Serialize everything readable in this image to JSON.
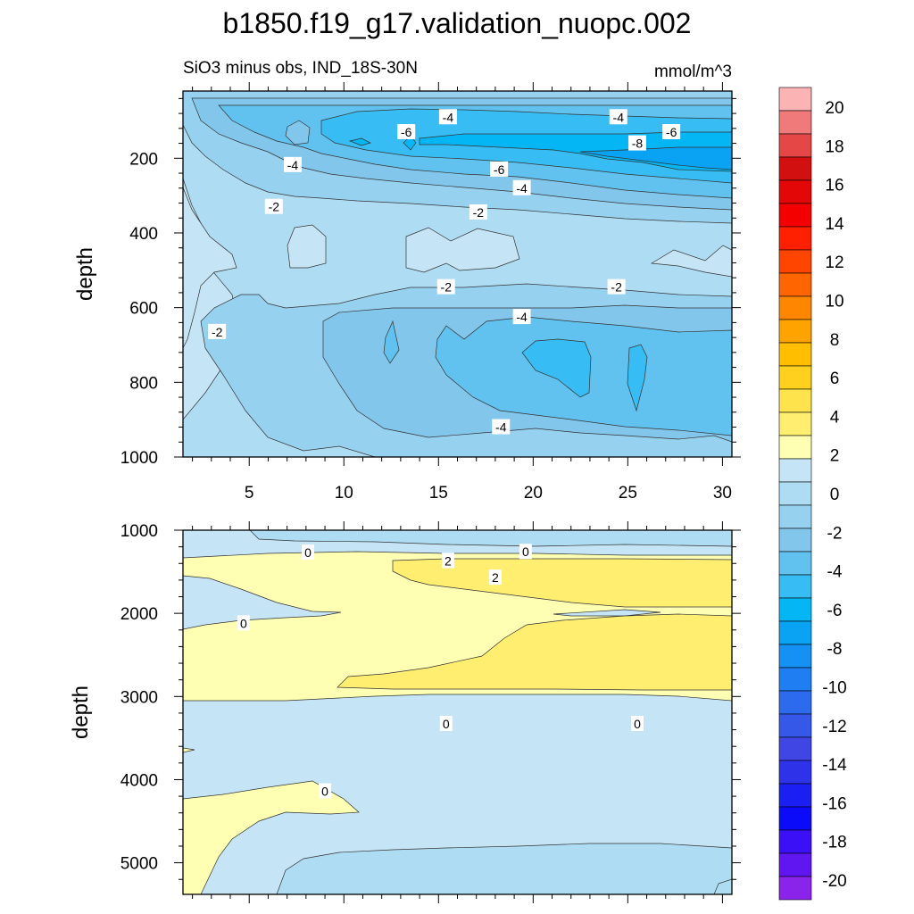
{
  "chart_data": {
    "title": "b1850.f19_g17.validation_nuopc.002",
    "panels": [
      {
        "type": "contour",
        "subtitle_left": "SiO3 minus obs, IND_18S-30N",
        "subtitle_right": "mmol/m^3",
        "ylabel": "depth",
        "ylim": [
          1000,
          20
        ],
        "xlim": [
          1.5,
          30.5
        ],
        "xticks": [
          5,
          10,
          15,
          20,
          25,
          30
        ],
        "xtick_labels": [
          "5",
          "10",
          "15",
          "20",
          "25",
          "30"
        ],
        "yticks": [
          200,
          400,
          600,
          800,
          1000
        ],
        "ytick_labels": [
          "200",
          "400",
          "600",
          "800",
          "1000"
        ],
        "contour_labels": [
          {
            "text": "-4",
            "x": 15.5,
            "y": 90
          },
          {
            "text": "-4",
            "x": 24.5,
            "y": 90
          },
          {
            "text": "-6",
            "x": 13.3,
            "y": 130
          },
          {
            "text": "-6",
            "x": 27.3,
            "y": 130
          },
          {
            "text": "-8",
            "x": 25.5,
            "y": 160
          },
          {
            "text": "-4",
            "x": 7.3,
            "y": 218
          },
          {
            "text": "-6",
            "x": 18.2,
            "y": 230
          },
          {
            "text": "-4",
            "x": 19.4,
            "y": 280
          },
          {
            "text": "-2",
            "x": 6.3,
            "y": 330
          },
          {
            "text": "-2",
            "x": 17.1,
            "y": 345
          },
          {
            "text": "-2",
            "x": 15.4,
            "y": 545
          },
          {
            "text": "-2",
            "x": 24.4,
            "y": 545
          },
          {
            "text": "-4",
            "x": 19.4,
            "y": 625
          },
          {
            "text": "-2",
            "x": 3.3,
            "y": 665
          },
          {
            "text": "-4",
            "x": 18.3,
            "y": 920
          }
        ]
      },
      {
        "type": "contour",
        "ylabel": "depth",
        "ylim": [
          5380,
          1000
        ],
        "xlim": [
          1.5,
          30.5
        ],
        "yticks": [
          1000,
          2000,
          3000,
          4000,
          5000
        ],
        "ytick_labels": [
          "1000",
          "2000",
          "3000",
          "4000",
          "5000"
        ],
        "contour_labels": [
          {
            "text": "0",
            "x": 8.1,
            "y": 1270
          },
          {
            "text": "0",
            "x": 19.6,
            "y": 1260
          },
          {
            "text": "2",
            "x": 15.5,
            "y": 1370
          },
          {
            "text": "2",
            "x": 18.0,
            "y": 1570
          },
          {
            "text": "0",
            "x": 4.7,
            "y": 2120
          },
          {
            "text": "0",
            "x": 15.4,
            "y": 3330
          },
          {
            "text": "0",
            "x": 25.5,
            "y": 3330
          },
          {
            "text": "0",
            "x": 9.0,
            "y": 4140
          }
        ]
      }
    ],
    "colorbar": {
      "labels": [
        "20",
        "18",
        "16",
        "14",
        "12",
        "10",
        "8",
        "6",
        "4",
        "2",
        "0",
        "-2",
        "-4",
        "-6",
        "-8",
        "-10",
        "-12",
        "-14",
        "-16",
        "-18",
        "-20"
      ],
      "colors": [
        "#fbb3b3",
        "#f07979",
        "#e54646",
        "#d21010",
        "#e30707",
        "#f50000",
        "#fe2000",
        "#ff4500",
        "#ff6500",
        "#ff8600",
        "#ffa300",
        "#ffbe00",
        "#ffd11e",
        "#ffe34c",
        "#ffee70",
        "#ffffb3",
        "#c5e4f5",
        "#aedcf3",
        "#97d1f0",
        "#82c6ec",
        "#62c2ef",
        "#37bcf3",
        "#05b6f4",
        "#0aa2f3",
        "#1590f3",
        "#207ef3",
        "#2d6bee",
        "#3558e9",
        "#3f46e4",
        "#2e33ea",
        "#1c1ff2",
        "#0b0bf9",
        "#3c10f6",
        "#6016f0",
        "#8a24ea"
      ]
    },
    "region_colors": {
      "lightblue": "#c5e4f5",
      "blue2": "#aedcf3",
      "blue3": "#97d1f0",
      "blue4": "#82c6ec",
      "blue5": "#62c2ef",
      "blue6": "#37bcf3",
      "blue7": "#05b6f4",
      "blue8": "#0aa2f3",
      "yellow1": "#ffffb3",
      "yellow2": "#ffee70"
    }
  }
}
